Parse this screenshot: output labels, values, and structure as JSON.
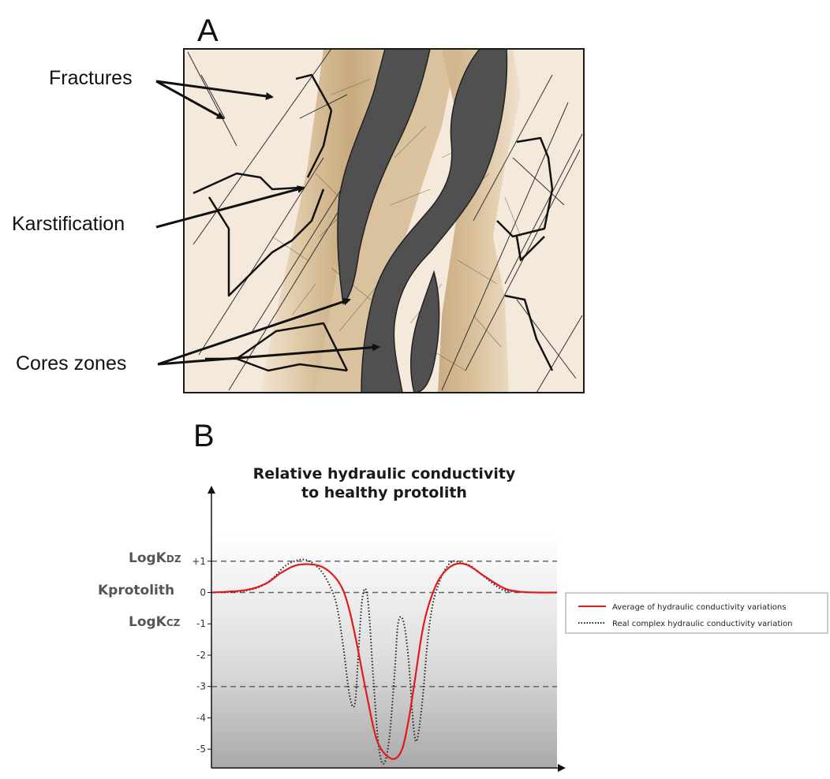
{
  "panel_a": {
    "letter": "A",
    "callouts": [
      {
        "id": "fractures",
        "label": "Fractures"
      },
      {
        "id": "karstification",
        "label": "Karstification"
      },
      {
        "id": "cores",
        "label": "Cores zones"
      }
    ],
    "colors": {
      "protolith": "#f5e9dc",
      "damage_zone": "#cfb48d",
      "core": "#505050",
      "frame": "#1a1a1a"
    }
  },
  "panel_b": {
    "letter": "B",
    "title_line1": "Relative hydraulic conductivity",
    "title_line2": "to healthy protolith",
    "ref_lines": [
      {
        "label_main": "LogK",
        "label_sub": "DZ",
        "value": 1
      },
      {
        "label_main": "Kprotolith",
        "label_sub": "",
        "value": 0
      },
      {
        "label_main": "LogK",
        "label_sub": "CZ",
        "value": -3
      }
    ],
    "legend": {
      "average": "Average of hydraulic conductivity variations",
      "real": "Real complex hydraulic conductivity variation"
    }
  },
  "chart_data": {
    "type": "line",
    "title": "Relative hydraulic conductivity to healthy protolith",
    "xlabel": "",
    "ylabel": "",
    "yticks": [
      "+1",
      "0",
      "-1",
      "-2",
      "-3",
      "-4",
      "-5"
    ],
    "ylim": [
      -5.6,
      2.0
    ],
    "xlim": [
      0,
      100
    ],
    "reference_lines": [
      1,
      0,
      -3
    ],
    "series": [
      {
        "name": "Average of hydraulic conductivity variations",
        "color": "#e01b1b",
        "style": "solid",
        "x": [
          0,
          10,
          16,
          20,
          25,
          31,
          35,
          38,
          40,
          42,
          45,
          48,
          52,
          55,
          57,
          59,
          61,
          63,
          66,
          70,
          74,
          79,
          85,
          90,
          95,
          100
        ],
        "y": [
          0,
          0.08,
          0.3,
          0.62,
          0.88,
          0.86,
          0.58,
          0.1,
          -0.6,
          -1.6,
          -3.3,
          -4.75,
          -5.3,
          -5.05,
          -4.1,
          -2.7,
          -1.25,
          -0.35,
          0.45,
          0.88,
          0.88,
          0.52,
          0.12,
          0.02,
          0,
          0
        ]
      },
      {
        "name": "Real complex hydraulic conductivity variation",
        "color": "#222222",
        "style": "dotted",
        "x": [
          0,
          8,
          14,
          18,
          21,
          24,
          27,
          30,
          33,
          36,
          38,
          40,
          41.5,
          42.5,
          43.5,
          44.5,
          45.5,
          47,
          48.5,
          50,
          51.5,
          53,
          54,
          55.5,
          57,
          58.5,
          59.5,
          61,
          62.5,
          64,
          66,
          68,
          70,
          72,
          75,
          79,
          84,
          88,
          93,
          100
        ],
        "y": [
          0,
          0.03,
          0.18,
          0.48,
          0.82,
          1.0,
          1.05,
          0.88,
          0.48,
          -0.3,
          -1.6,
          -3.3,
          -3.55,
          -2.0,
          -0.35,
          0.12,
          -0.5,
          -3.0,
          -5.0,
          -5.45,
          -4.6,
          -2.6,
          -1.0,
          -0.9,
          -2.1,
          -4.3,
          -4.7,
          -3.5,
          -1.6,
          -0.4,
          0.35,
          0.8,
          1.0,
          0.95,
          0.85,
          0.5,
          0.1,
          0.03,
          0,
          0
        ]
      }
    ]
  }
}
